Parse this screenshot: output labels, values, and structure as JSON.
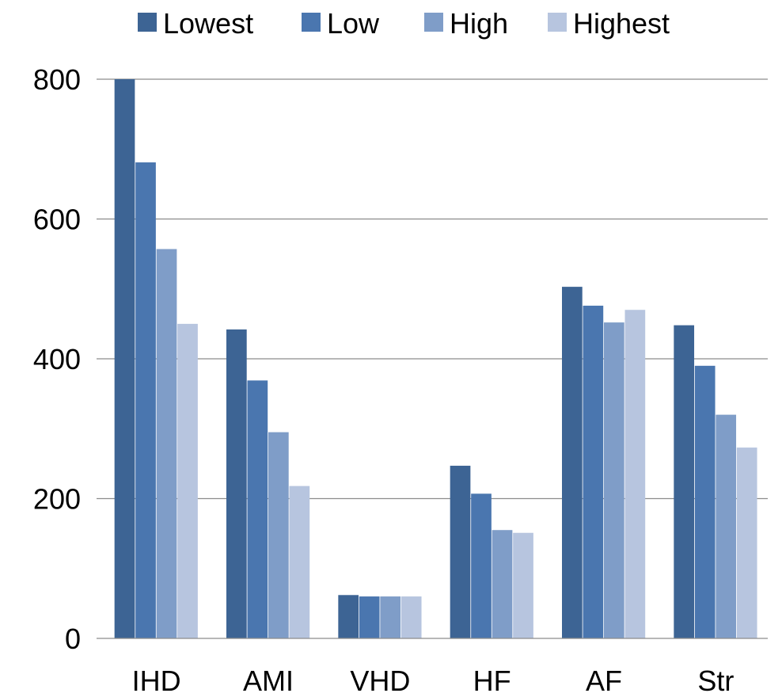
{
  "chart_data": {
    "type": "bar",
    "title": "",
    "xlabel": "",
    "ylabel": "",
    "categories": [
      "IHD",
      "AMI",
      "VHD",
      "HF",
      "AF",
      "Str"
    ],
    "ylim": [
      0,
      800
    ],
    "yticks": [
      0,
      200,
      400,
      600,
      800
    ],
    "grid": true,
    "legend_position": "top",
    "series": [
      {
        "name": "Lowest",
        "color": "#3D6494",
        "values": [
          800,
          442,
          62,
          247,
          503,
          448
        ]
      },
      {
        "name": "Low",
        "color": "#4A76AF",
        "values": [
          681,
          369,
          60,
          207,
          476,
          390
        ]
      },
      {
        "name": "High",
        "color": "#7F9DC8",
        "values": [
          557,
          295,
          60,
          155,
          452,
          320
        ]
      },
      {
        "name": "Highest",
        "color": "#B7C5DF",
        "values": [
          450,
          218,
          60,
          151,
          470,
          273
        ]
      }
    ]
  }
}
